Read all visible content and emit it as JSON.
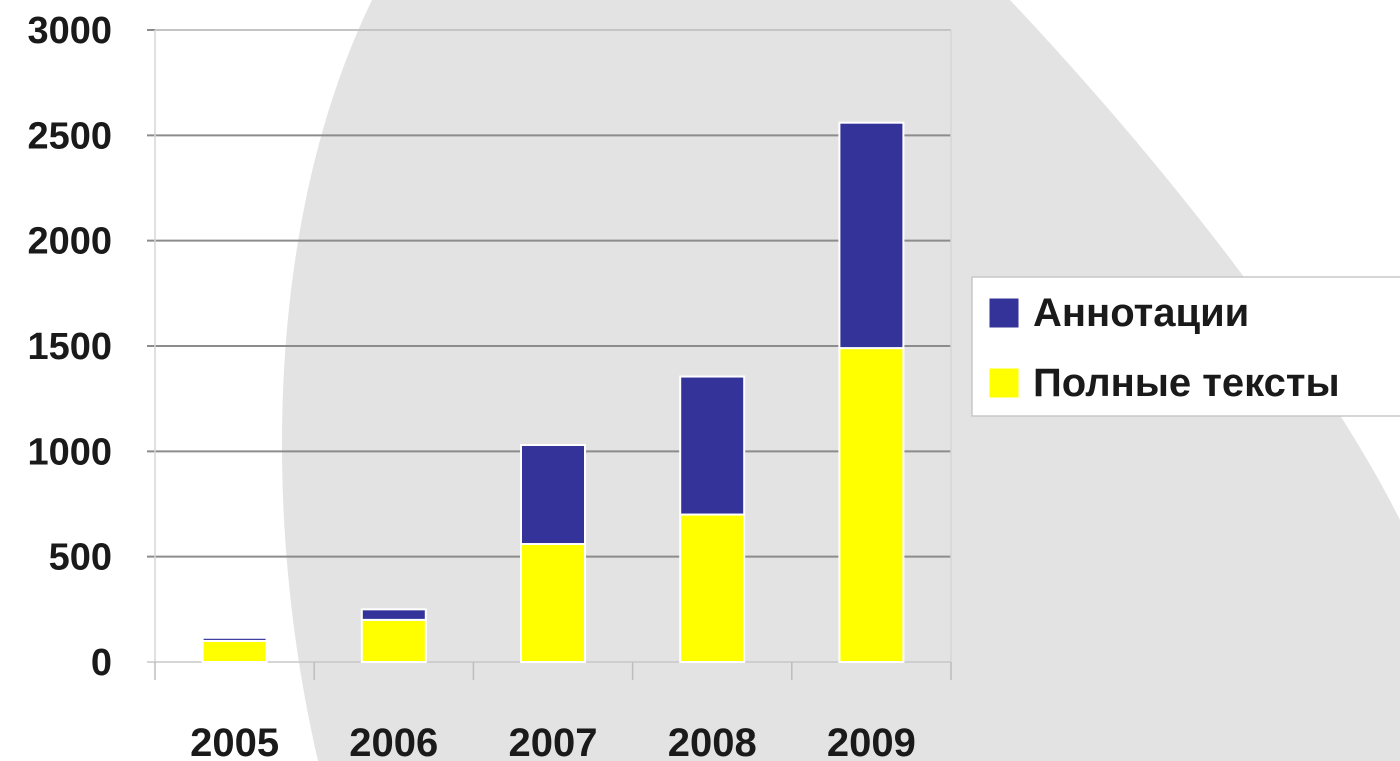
{
  "chart_data": {
    "type": "bar",
    "stacked": true,
    "categories": [
      "2005",
      "2006",
      "2007",
      "2008",
      "2009"
    ],
    "series": [
      {
        "name": "Полные тексты",
        "color": "#FFFF00",
        "values": [
          100,
          200,
          560,
          700,
          1490
        ]
      },
      {
        "name": "Аннотации",
        "color": "#333399",
        "values": [
          15,
          50,
          470,
          655,
          1070
        ]
      }
    ],
    "legend_order": [
      "Аннотации",
      "Полные тексты"
    ],
    "ylim": [
      0,
      3000
    ],
    "yticks": [
      "0",
      "500",
      "1000",
      "1500",
      "2000",
      "2500",
      "3000"
    ],
    "grid": true,
    "legend_position": "right",
    "title": "",
    "xlabel": "",
    "ylabel": ""
  },
  "colors": {
    "background": "#ffffff",
    "decor_shape": "#e3e3e3",
    "gridline": "#8c8c8c",
    "bar_outline": "#ffffff"
  }
}
